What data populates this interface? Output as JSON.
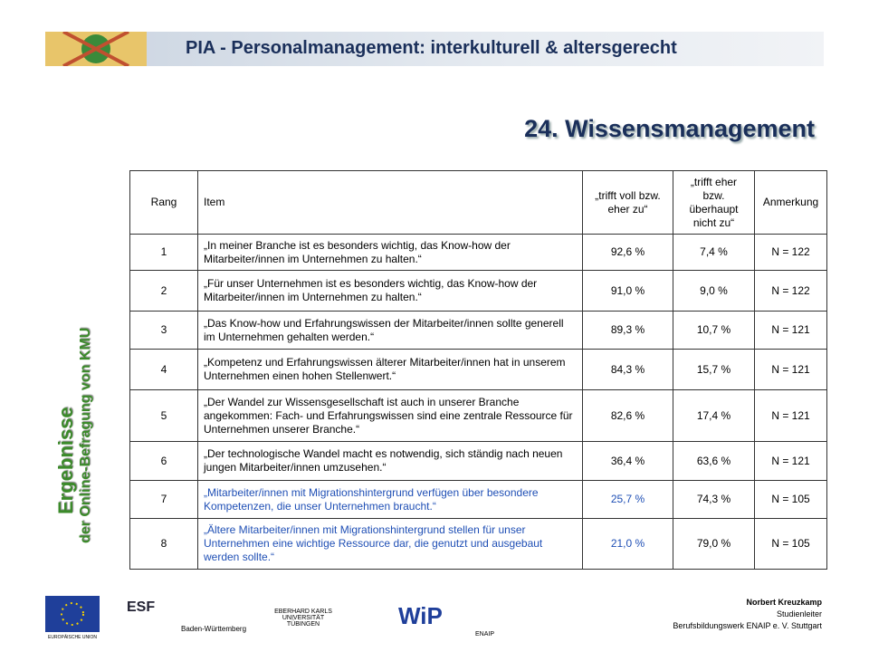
{
  "header": {
    "title": "PIA - Personalmanagement: interkulturell & altersgerecht"
  },
  "section_title": "24. Wissensmanagement",
  "side_title": {
    "line1": "Ergebnisse",
    "line2": "der Online-Befragung von KMU"
  },
  "table": {
    "columns": [
      "Rang",
      "Item",
      "„trifft voll bzw. eher zu“",
      "„trifft eher bzw. überhaupt nicht zu“",
      "Anmerkung"
    ],
    "rows": [
      [
        "1",
        "„In meiner Branche ist es besonders wichtig, das Know-how der Mitarbeiter/innen im Unternehmen zu halten.“",
        "92,6 %",
        "7,4 %",
        "N = 122"
      ],
      [
        "2",
        "„Für unser Unternehmen ist es besonders wichtig, das Know-how der Mitarbeiter/innen im Unternehmen zu halten.“",
        "91,0 %",
        "9,0 %",
        "N = 122"
      ],
      [
        "3",
        "„Das Know-how und Erfahrungswissen der Mitarbeiter/innen sollte generell im Unternehmen gehalten werden.“",
        "89,3 %",
        "10,7 %",
        "N = 121"
      ],
      [
        "4",
        "„Kompetenz und Erfahrungswissen älterer Mitarbeiter/innen hat in unserem Unternehmen einen hohen Stellenwert.“",
        "84,3 %",
        "15,7 %",
        "N = 121"
      ],
      [
        "5",
        "„Der Wandel zur Wissensgesellschaft ist auch in unserer Branche angekommen: Fach- und Erfahrungswissen sind eine zentrale Ressource für Unternehmen unserer Branche.“",
        "82,6 %",
        "17,4 %",
        "N = 121"
      ],
      [
        "6",
        "„Der technologische Wandel macht es notwendig, sich ständig nach neuen jungen Mitarbeiter/innen umzusehen.“",
        "36,4 %",
        "63,6 %",
        "N = 121"
      ],
      [
        "7",
        "„Mitarbeiter/innen mit Migrationshintergrund verfügen über besondere Kompetenzen, die unser Unternehmen braucht.“",
        "25,7 %",
        "74,3 %",
        "N = 105"
      ],
      [
        "8",
        "„Ältere Mitarbeiter/innen mit Migrationshintergrund stellen für unser Unternehmen eine wichtige Ressource dar, die genutzt und ausgebaut werden sollte.“",
        "21,0 %",
        "79,0 %",
        "N = 105"
      ]
    ],
    "row_colors": [
      "#000000",
      "#000000",
      "#000000",
      "#000000",
      "#000000",
      "#000000",
      "#1f4fb5",
      "#1f4fb5"
    ]
  },
  "footer": {
    "name": "Norbert Kreuzkamp",
    "role": "Studienleiter",
    "org": "Berufsbildungswerk ENAIP e. V. Stuttgart"
  },
  "logos": {
    "eu": "EUROPÄISCHE UNION",
    "esf": "ESF",
    "bw": "Baden-Württemberg",
    "uni": "EBERHARD KARLS UNIVERSITÄT TÜBINGEN",
    "wip": "WiP",
    "enaip": "ENAIP"
  }
}
